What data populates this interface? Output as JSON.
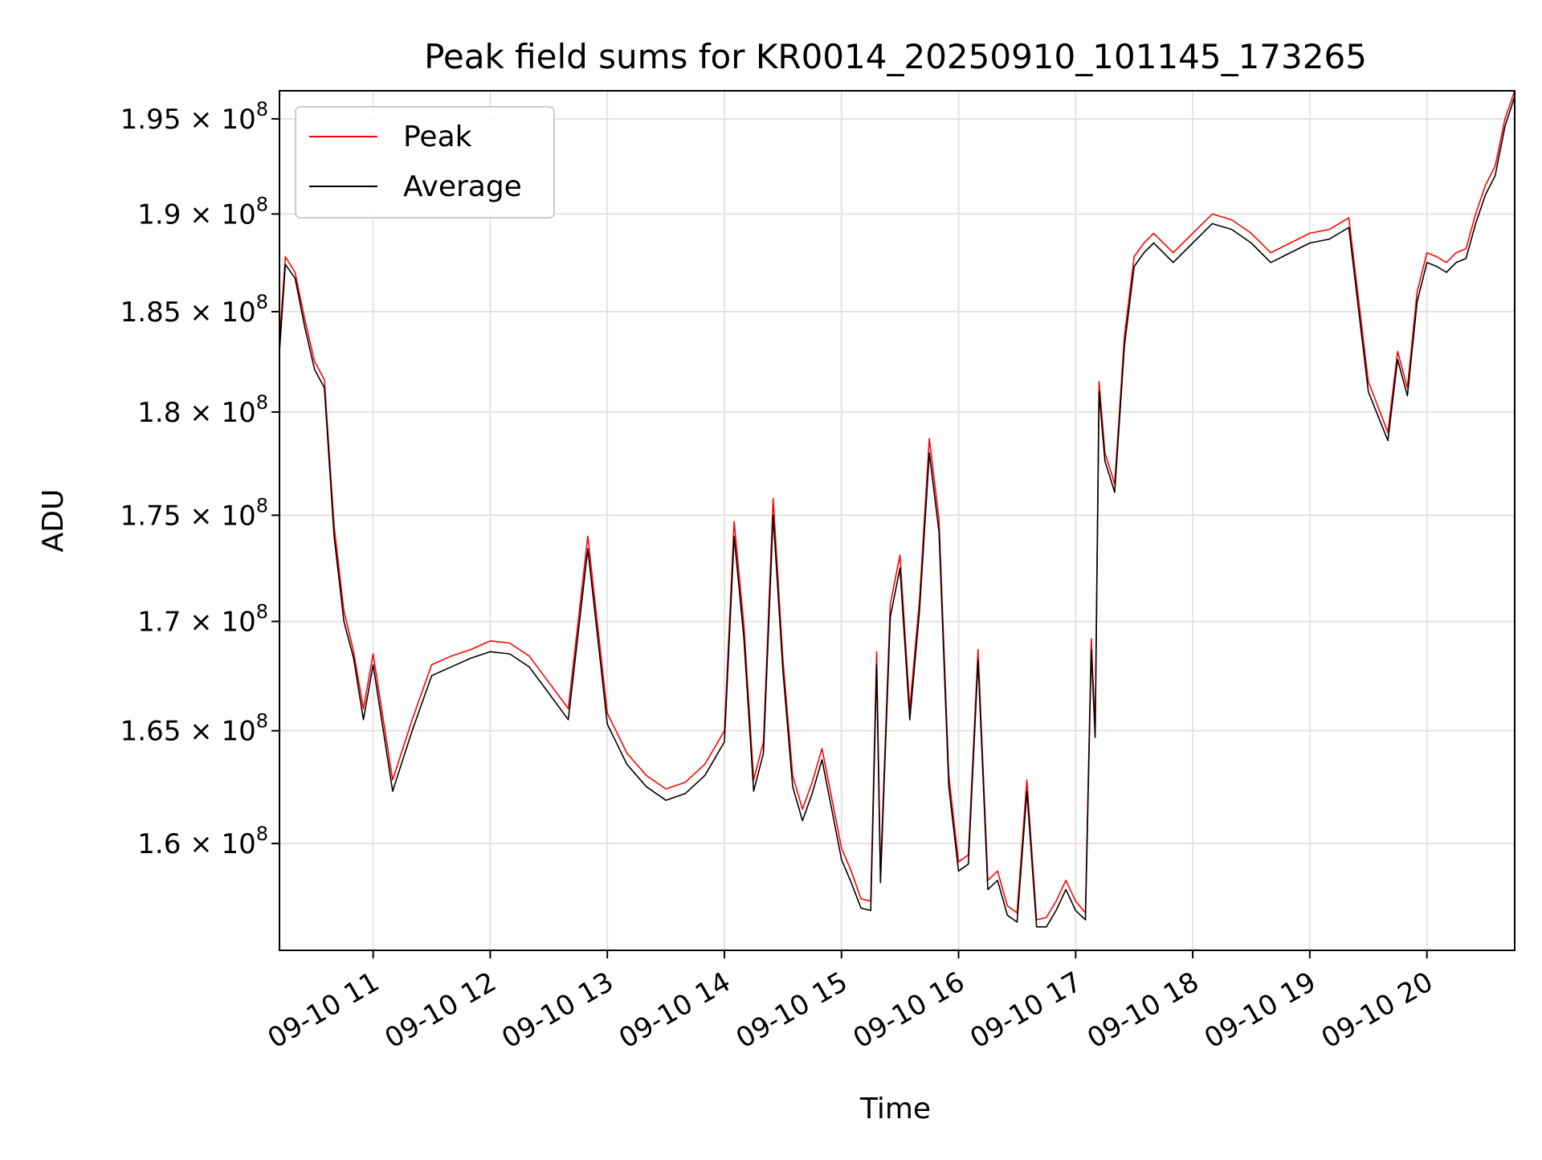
{
  "chart_data": {
    "type": "line",
    "title": "Peak field sums for KR0014_20250910_101145_173265",
    "xlabel": "Time",
    "ylabel": "ADU",
    "grid": true,
    "legend_position": "top-left",
    "y_scale": "log",
    "ylim": [
      155400000,
      196500000
    ],
    "xlim": [
      "2025-09-10 10:12",
      "2025-09-10 20:45"
    ],
    "x_ticks": [
      {
        "at": "2025-09-10 11:00",
        "label": "09-10 11"
      },
      {
        "at": "2025-09-10 12:00",
        "label": "09-10 12"
      },
      {
        "at": "2025-09-10 13:00",
        "label": "09-10 13"
      },
      {
        "at": "2025-09-10 14:00",
        "label": "09-10 14"
      },
      {
        "at": "2025-09-10 15:00",
        "label": "09-10 15"
      },
      {
        "at": "2025-09-10 16:00",
        "label": "09-10 16"
      },
      {
        "at": "2025-09-10 17:00",
        "label": "09-10 17"
      },
      {
        "at": "2025-09-10 18:00",
        "label": "09-10 18"
      },
      {
        "at": "2025-09-10 19:00",
        "label": "09-10 19"
      },
      {
        "at": "2025-09-10 20:00",
        "label": "09-10 20"
      }
    ],
    "y_ticks": [
      {
        "value": 160000000,
        "mantissa": "1.6"
      },
      {
        "value": 165000000,
        "mantissa": "1.65"
      },
      {
        "value": 170000000,
        "mantissa": "1.7"
      },
      {
        "value": 175000000,
        "mantissa": "1.75"
      },
      {
        "value": 180000000,
        "mantissa": "1.8"
      },
      {
        "value": 185000000,
        "mantissa": "1.85"
      },
      {
        "value": 190000000,
        "mantissa": "1.9"
      },
      {
        "value": 195000000,
        "mantissa": "1.95"
      }
    ],
    "y_tick_suffix": " × 10",
    "y_tick_exponent": "8",
    "x": [
      "2025-09-10 10:12",
      "2025-09-10 10:15",
      "2025-09-10 10:20",
      "2025-09-10 10:25",
      "2025-09-10 10:30",
      "2025-09-10 10:35",
      "2025-09-10 10:40",
      "2025-09-10 10:45",
      "2025-09-10 10:50",
      "2025-09-10 10:55",
      "2025-09-10 11:00",
      "2025-09-10 11:10",
      "2025-09-10 11:20",
      "2025-09-10 11:30",
      "2025-09-10 11:40",
      "2025-09-10 11:50",
      "2025-09-10 12:00",
      "2025-09-10 12:10",
      "2025-09-10 12:20",
      "2025-09-10 12:30",
      "2025-09-10 12:40",
      "2025-09-10 12:50",
      "2025-09-10 13:00",
      "2025-09-10 13:10",
      "2025-09-10 13:20",
      "2025-09-10 13:30",
      "2025-09-10 13:40",
      "2025-09-10 13:50",
      "2025-09-10 14:00",
      "2025-09-10 14:05",
      "2025-09-10 14:10",
      "2025-09-10 14:15",
      "2025-09-10 14:20",
      "2025-09-10 14:25",
      "2025-09-10 14:30",
      "2025-09-10 14:35",
      "2025-09-10 14:40",
      "2025-09-10 14:45",
      "2025-09-10 14:50",
      "2025-09-10 14:55",
      "2025-09-10 15:00",
      "2025-09-10 15:05",
      "2025-09-10 15:10",
      "2025-09-10 15:15",
      "2025-09-10 15:18",
      "2025-09-10 15:20",
      "2025-09-10 15:25",
      "2025-09-10 15:30",
      "2025-09-10 15:35",
      "2025-09-10 15:40",
      "2025-09-10 15:45",
      "2025-09-10 15:50",
      "2025-09-10 15:55",
      "2025-09-10 16:00",
      "2025-09-10 16:05",
      "2025-09-10 16:10",
      "2025-09-10 16:15",
      "2025-09-10 16:20",
      "2025-09-10 16:25",
      "2025-09-10 16:30",
      "2025-09-10 16:35",
      "2025-09-10 16:40",
      "2025-09-10 16:45",
      "2025-09-10 16:50",
      "2025-09-10 16:55",
      "2025-09-10 17:00",
      "2025-09-10 17:05",
      "2025-09-10 17:08",
      "2025-09-10 17:10",
      "2025-09-10 17:12",
      "2025-09-10 17:15",
      "2025-09-10 17:18",
      "2025-09-10 17:20",
      "2025-09-10 17:25",
      "2025-09-10 17:30",
      "2025-09-10 17:35",
      "2025-09-10 17:40",
      "2025-09-10 17:45",
      "2025-09-10 17:50",
      "2025-09-10 18:00",
      "2025-09-10 18:10",
      "2025-09-10 18:20",
      "2025-09-10 18:30",
      "2025-09-10 18:40",
      "2025-09-10 18:50",
      "2025-09-10 19:00",
      "2025-09-10 19:10",
      "2025-09-10 19:20",
      "2025-09-10 19:30",
      "2025-09-10 19:40",
      "2025-09-10 19:45",
      "2025-09-10 19:50",
      "2025-09-10 19:55",
      "2025-09-10 20:00",
      "2025-09-10 20:05",
      "2025-09-10 20:10",
      "2025-09-10 20:15",
      "2025-09-10 20:20",
      "2025-09-10 20:25",
      "2025-09-10 20:30",
      "2025-09-10 20:35",
      "2025-09-10 20:40",
      "2025-09-10 20:45"
    ],
    "series": [
      {
        "name": "Peak",
        "color": "#ff0000",
        "values": [
          183500000,
          187800000,
          187000000,
          184600000,
          182500000,
          181600000,
          174500000,
          170500000,
          168600000,
          166000000,
          168500000,
          162800000,
          165500000,
          168000000,
          168400000,
          168700000,
          169100000,
          169000000,
          168400000,
          167200000,
          166000000,
          174000000,
          165800000,
          164000000,
          163000000,
          162400000,
          162700000,
          163500000,
          165000000,
          174700000,
          169800000,
          162800000,
          164500000,
          175800000,
          168200000,
          163000000,
          161500000,
          162700000,
          164200000,
          162000000,
          159800000,
          158800000,
          157600000,
          157500000,
          168600000,
          158700000,
          170800000,
          173100000,
          166000000,
          171000000,
          178700000,
          174800000,
          163000000,
          159200000,
          159500000,
          168700000,
          158400000,
          158800000,
          157300000,
          157000000,
          162800000,
          156700000,
          156800000,
          157500000,
          158400000,
          157500000,
          157000000,
          169200000,
          165000000,
          181500000,
          178000000,
          177100000,
          176500000,
          183800000,
          187800000,
          188500000,
          189000000,
          188500000,
          188000000,
          189000000,
          190000000,
          189700000,
          189000000,
          188000000,
          188500000,
          189000000,
          189200000,
          189800000,
          181500000,
          179000000,
          183000000,
          181200000,
          186000000,
          188000000,
          187800000,
          187500000,
          188000000,
          188200000,
          190000000,
          191500000,
          192500000,
          195000000,
          196500000
        ]
      },
      {
        "name": "Average",
        "color": "#000000",
        "values": [
          183000000,
          187400000,
          186700000,
          184200000,
          182100000,
          181200000,
          174000000,
          170000000,
          168300000,
          165500000,
          168000000,
          162300000,
          165000000,
          167500000,
          167900000,
          168300000,
          168600000,
          168500000,
          167900000,
          166700000,
          165500000,
          173400000,
          165300000,
          163500000,
          162500000,
          161900000,
          162200000,
          163000000,
          164500000,
          174000000,
          169200000,
          162300000,
          164000000,
          175000000,
          167700000,
          162500000,
          161000000,
          162200000,
          163700000,
          161500000,
          159300000,
          158300000,
          157200000,
          157100000,
          168000000,
          158300000,
          170200000,
          172500000,
          165500000,
          170500000,
          178000000,
          174200000,
          162500000,
          158800000,
          159100000,
          168200000,
          158000000,
          158400000,
          156900000,
          156600000,
          162300000,
          156400000,
          156400000,
          157100000,
          158000000,
          157100000,
          156700000,
          168700000,
          164700000,
          181000000,
          177600000,
          176700000,
          176100000,
          183300000,
          187300000,
          188000000,
          188500000,
          188000000,
          187500000,
          188500000,
          189500000,
          189200000,
          188500000,
          187500000,
          188000000,
          188500000,
          188700000,
          189300000,
          181000000,
          178600000,
          182600000,
          180800000,
          185500000,
          187500000,
          187300000,
          187000000,
          187500000,
          187700000,
          189500000,
          191000000,
          192000000,
          194600000,
          196200000
        ]
      }
    ]
  }
}
